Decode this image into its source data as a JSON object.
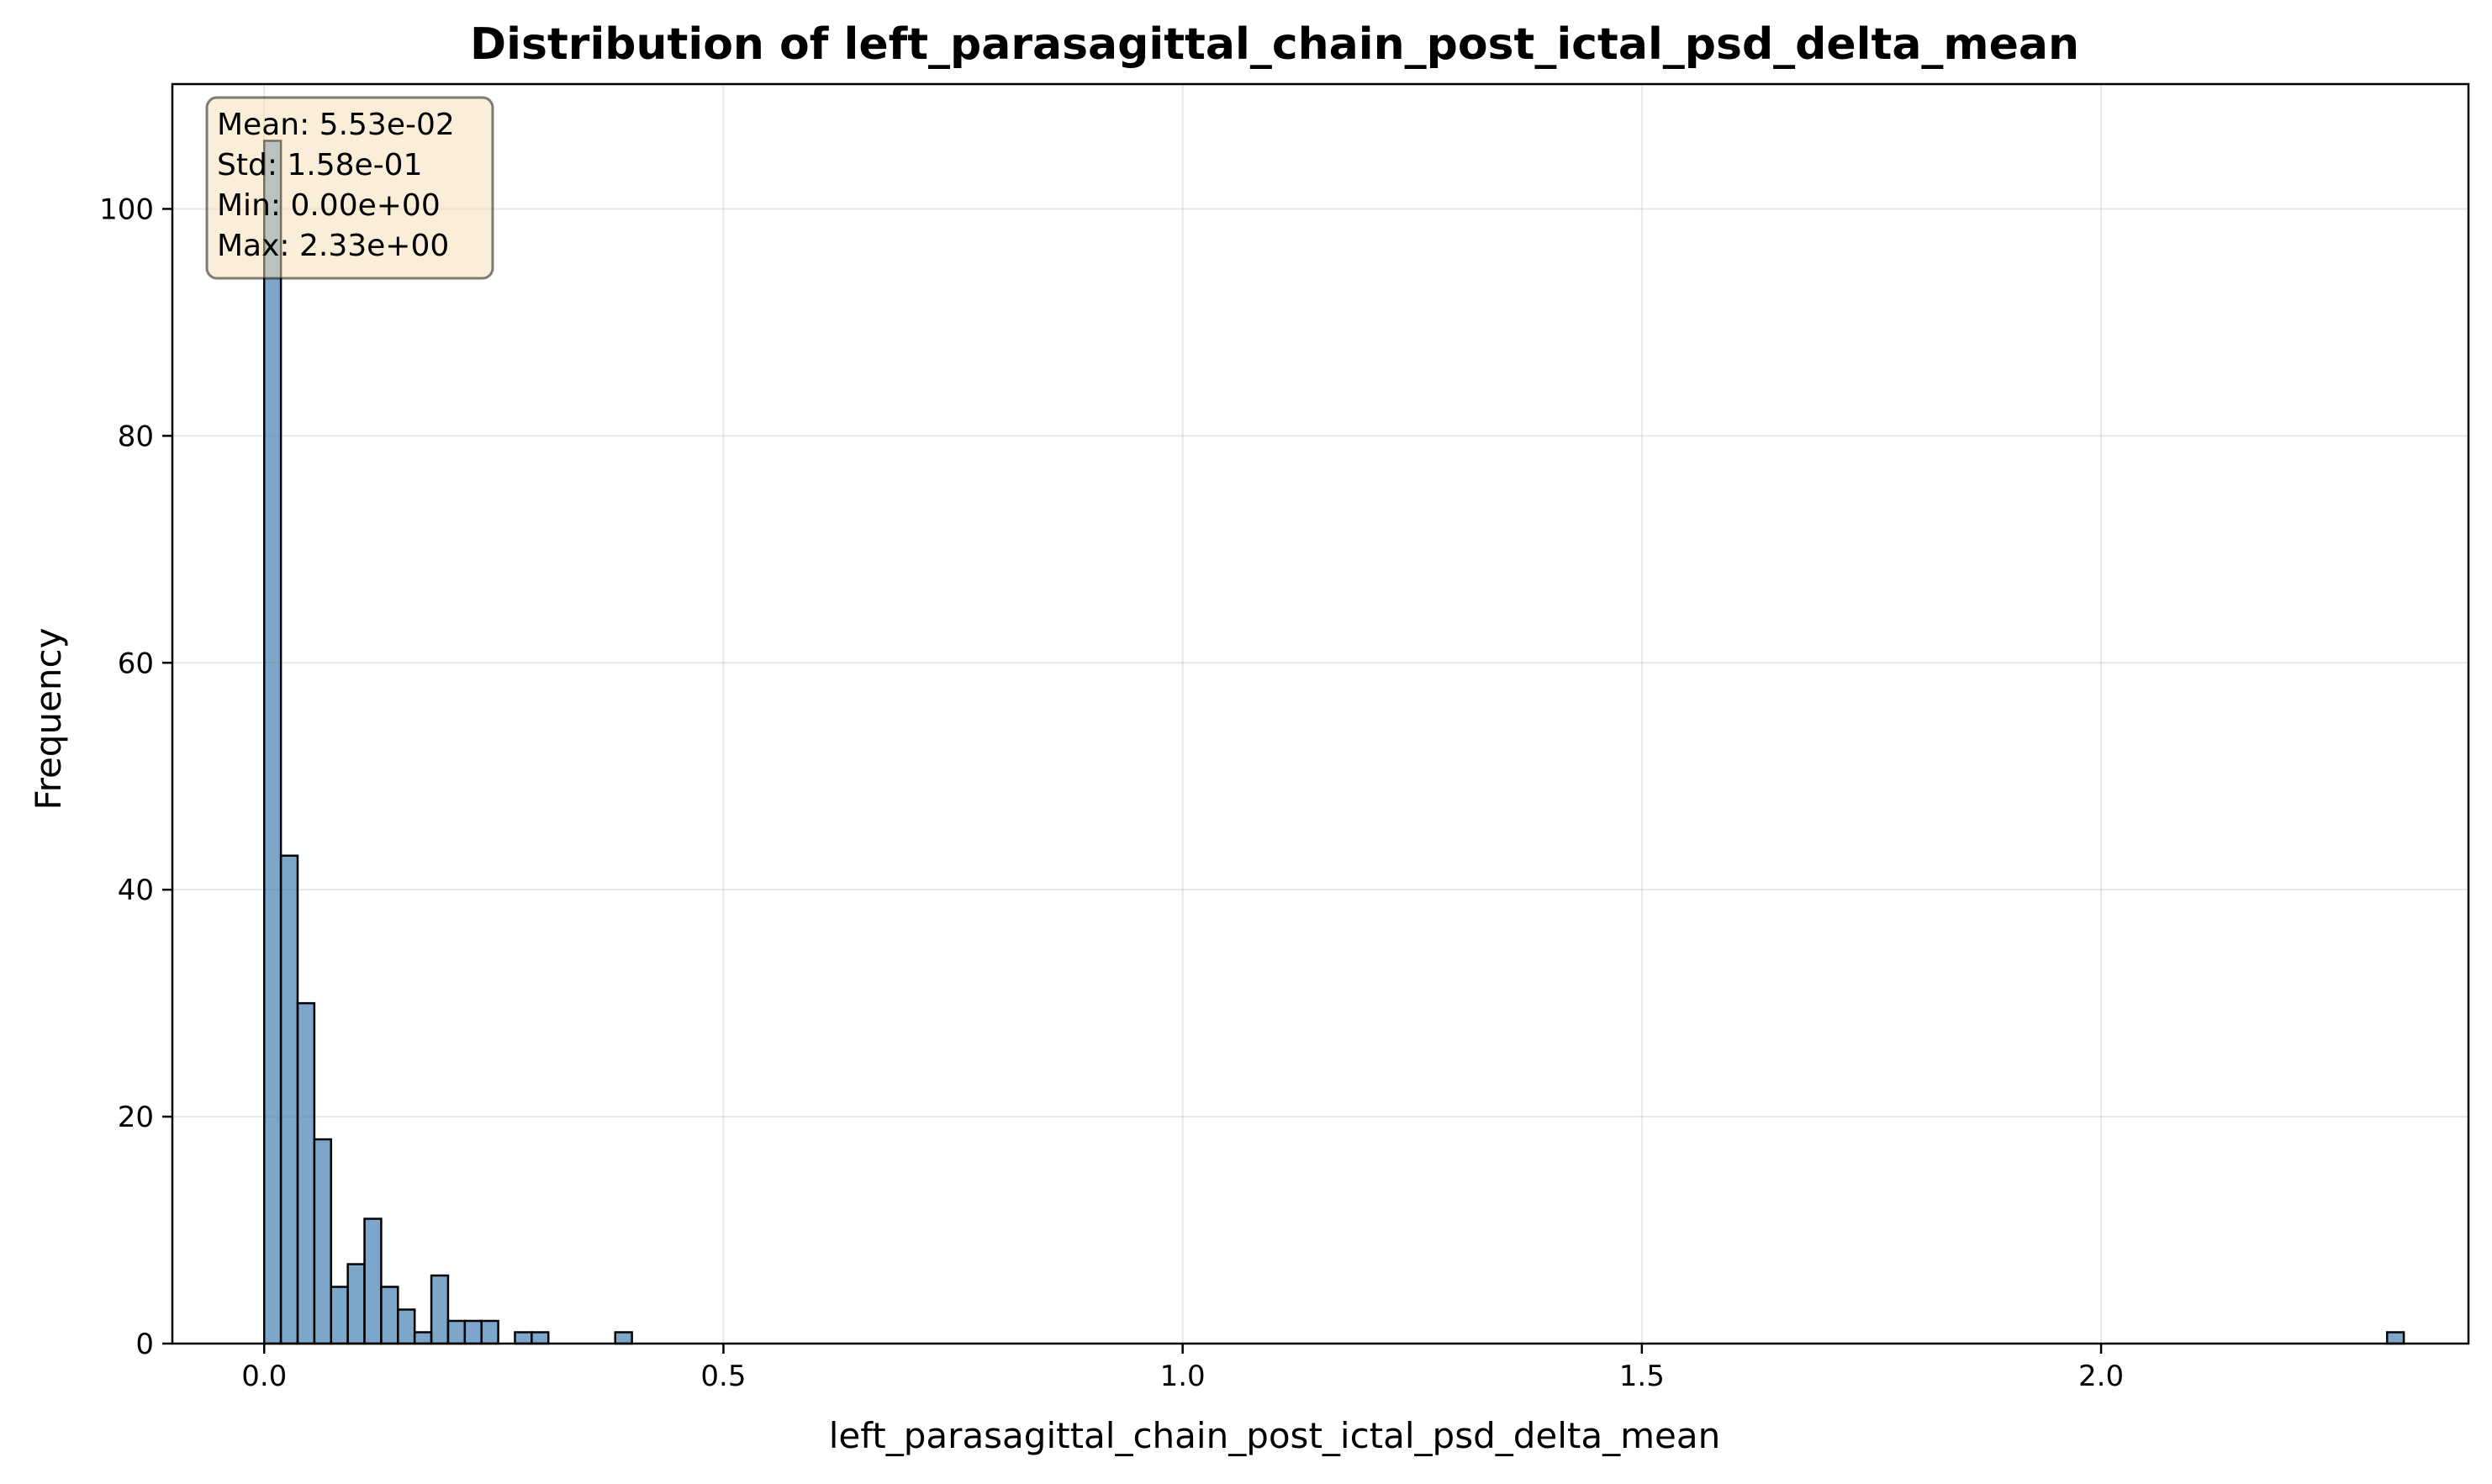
{
  "chart_data": {
    "type": "histogram",
    "title": "Distribution of left_parasagittal_chain_post_ictal_psd_delta_mean",
    "xlabel": "left_parasagittal_chain_post_ictal_psd_delta_mean",
    "ylabel": "Frequency",
    "xlim": [
      -0.1,
      2.4
    ],
    "ylim": [
      0,
      111
    ],
    "x_ticks": [
      0.0,
      0.5,
      1.0,
      1.5,
      2.0
    ],
    "x_tick_labels": [
      "0.0",
      "0.5",
      "1.0",
      "1.5",
      "2.0"
    ],
    "y_ticks": [
      0,
      20,
      40,
      60,
      80,
      100
    ],
    "y_tick_labels": [
      "0",
      "20",
      "40",
      "60",
      "80",
      "100"
    ],
    "grid": true,
    "bin_start": 0.0,
    "bin_width": 0.0182,
    "counts": [
      106,
      43,
      30,
      18,
      5,
      7,
      11,
      5,
      3,
      1,
      6,
      2,
      2,
      2,
      0,
      1,
      1,
      0,
      0,
      0,
      0,
      1,
      0,
      0,
      0,
      0,
      0,
      0,
      0,
      0,
      0,
      0,
      0,
      0,
      0,
      0,
      0,
      0,
      0,
      0,
      0,
      0,
      0,
      0,
      0,
      0,
      0,
      0,
      0,
      0,
      0,
      0,
      0,
      0,
      0,
      0,
      0,
      0,
      0,
      0,
      0,
      0,
      0,
      0,
      0,
      0,
      0,
      0,
      0,
      0,
      0,
      0,
      0,
      0,
      0,
      0,
      0,
      0,
      0,
      0,
      0,
      0,
      0,
      0,
      0,
      0,
      0,
      0,
      0,
      0,
      0,
      0,
      0,
      0,
      0,
      0,
      0,
      0,
      0,
      0,
      0,
      0,
      0,
      0,
      0,
      0,
      0,
      0,
      0,
      0,
      0,
      0,
      0,
      0,
      0,
      0,
      0,
      0,
      0,
      0,
      0,
      0,
      0,
      0,
      0,
      0,
      0,
      1
    ],
    "bar_color": "#4682b4",
    "bar_edge_color": "#000000",
    "stats_box": {
      "lines": [
        "Mean: 5.53e-02",
        "Std: 1.58e-01",
        "Min: 0.00e+00",
        "Max: 2.33e+00"
      ],
      "placement": "top-left",
      "background": "#f5deb3"
    }
  }
}
